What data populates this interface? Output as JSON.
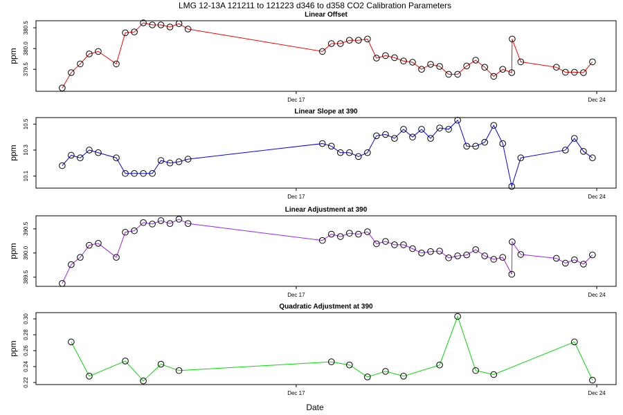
{
  "title": "LMG   12-13A    121211 to 121223    d346 to d358    CO2 Calibration Parameters",
  "x_label": "Date",
  "chart_data": [
    {
      "type": "line",
      "title": "Linear Offset",
      "y_label": "ppm",
      "color": "#ff0000",
      "x": [
        346.55,
        346.76,
        346.97,
        347.18,
        347.39,
        347.81,
        348.02,
        348.23,
        348.44,
        348.65,
        348.85,
        349.06,
        349.27,
        349.48,
        352.61,
        352.82,
        353.03,
        353.24,
        353.45,
        353.66,
        353.87,
        354.08,
        354.29,
        354.5,
        354.71,
        354.92,
        355.13,
        355.34,
        355.55,
        355.76,
        355.97,
        356.18,
        356.39,
        356.6,
        356.81,
        357.02,
        357.03,
        357.23,
        358.06,
        358.27,
        358.48,
        358.69,
        358.9
      ],
      "values": [
        379.05,
        379.42,
        379.63,
        379.87,
        379.93,
        379.63,
        380.38,
        380.4,
        380.62,
        380.57,
        380.57,
        380.52,
        380.6,
        380.47,
        379.93,
        380.12,
        380.12,
        380.2,
        380.2,
        380.23,
        379.77,
        379.83,
        379.78,
        379.7,
        379.67,
        379.5,
        379.62,
        379.57,
        379.38,
        379.38,
        379.58,
        379.72,
        379.55,
        379.33,
        379.5,
        379.42,
        380.23,
        379.68,
        379.55,
        379.43,
        379.43,
        379.42,
        379.68
      ],
      "xlim": [
        345.94,
        359.45
      ],
      "xticks": [
        {
          "value": 352,
          "label": "Dec 17"
        },
        {
          "value": 359,
          "label": "Dec 24"
        }
      ],
      "ylim": [
        378.97,
        380.67
      ],
      "yticks": [
        379.5,
        {
          "value": 380,
          "label": "380.0"
        },
        380.5
      ]
    },
    {
      "type": "line",
      "title": "Linear Slope at 390",
      "y_label": "ppm",
      "color": "#0000ff",
      "x": [
        346.55,
        346.76,
        346.97,
        347.18,
        347.39,
        347.81,
        348.02,
        348.23,
        348.44,
        348.65,
        348.85,
        349.06,
        349.27,
        349.48,
        352.61,
        352.82,
        353.03,
        353.24,
        353.45,
        353.66,
        353.87,
        354.08,
        354.29,
        354.5,
        354.71,
        354.92,
        355.13,
        355.34,
        355.55,
        355.76,
        355.97,
        356.18,
        356.39,
        356.6,
        356.81,
        357.02,
        357.23,
        358.27,
        358.48,
        358.69,
        358.9
      ],
      "values": [
        10.18,
        10.26,
        10.24,
        10.3,
        10.28,
        10.24,
        10.12,
        10.12,
        10.12,
        10.12,
        10.22,
        10.2,
        10.21,
        10.23,
        10.35,
        10.33,
        10.28,
        10.28,
        10.25,
        10.28,
        10.41,
        10.42,
        10.39,
        10.46,
        10.4,
        10.46,
        10.39,
        10.47,
        10.46,
        10.53,
        10.33,
        10.33,
        10.36,
        10.49,
        10.35,
        10.02,
        10.24,
        10.3,
        10.39,
        10.29,
        10.24
      ],
      "xlim": [
        345.94,
        359.45
      ],
      "xticks": [
        {
          "value": 352,
          "label": "Dec 17"
        },
        {
          "value": 359,
          "label": "Dec 24"
        }
      ],
      "ylim": [
        10.007,
        10.55
      ],
      "yticks": [
        10.1,
        10.3,
        10.5
      ]
    },
    {
      "type": "line",
      "title": "Linear Adjustment at 390",
      "y_label": "ppm",
      "color": "#a020f0",
      "x": [
        346.55,
        346.76,
        346.97,
        347.18,
        347.39,
        347.81,
        348.02,
        348.23,
        348.44,
        348.65,
        348.85,
        349.06,
        349.27,
        349.48,
        352.61,
        352.82,
        353.03,
        353.24,
        353.45,
        353.66,
        353.87,
        354.08,
        354.29,
        354.5,
        354.71,
        354.92,
        355.13,
        355.34,
        355.55,
        355.76,
        355.97,
        356.18,
        356.39,
        356.6,
        356.81,
        357.02,
        357.03,
        357.23,
        358.06,
        358.27,
        358.48,
        358.69,
        358.9
      ],
      "values": [
        389.37,
        389.76,
        389.91,
        390.16,
        390.2,
        389.91,
        390.43,
        390.46,
        390.63,
        390.6,
        390.67,
        390.61,
        390.7,
        390.61,
        390.26,
        390.39,
        390.34,
        390.41,
        390.39,
        390.44,
        390.19,
        390.24,
        390.17,
        390.17,
        390.09,
        390.0,
        390.03,
        390.04,
        389.9,
        389.94,
        389.96,
        390.07,
        389.94,
        389.87,
        389.91,
        389.56,
        390.23,
        389.97,
        389.89,
        389.79,
        389.86,
        389.77,
        389.96
      ],
      "xlim": [
        345.94,
        359.45
      ],
      "xticks": [
        {
          "value": 352,
          "label": "Dec 17"
        },
        {
          "value": 359,
          "label": "Dec 24"
        }
      ],
      "ylim": [
        389.31,
        390.77
      ],
      "yticks": [
        389.5,
        {
          "value": 390,
          "label": "390.0"
        },
        390.5
      ]
    },
    {
      "type": "line",
      "title": "Quadratic Adjustment at 390",
      "y_label": "ppm",
      "color": "#00dd00",
      "x": [
        346.76,
        347.18,
        348.02,
        348.44,
        348.85,
        349.27,
        352.82,
        353.24,
        353.66,
        354.08,
        354.5,
        355.34,
        355.76,
        356.18,
        356.6,
        358.48,
        358.9
      ],
      "values": [
        0.271,
        0.228,
        0.247,
        0.222,
        0.243,
        0.235,
        0.246,
        0.242,
        0.227,
        0.234,
        0.228,
        0.242,
        0.303,
        0.235,
        0.23,
        0.271,
        0.223
      ],
      "xlim": [
        345.94,
        359.45
      ],
      "xticks": [
        {
          "value": 352,
          "label": "Dec 17"
        },
        {
          "value": 359,
          "label": "Dec 24"
        }
      ],
      "ylim": [
        0.2174,
        0.3078
      ],
      "yticks": [
        0.22,
        0.24,
        0.26,
        0.28,
        {
          "value": 0.3,
          "label": "0.30"
        }
      ]
    }
  ]
}
